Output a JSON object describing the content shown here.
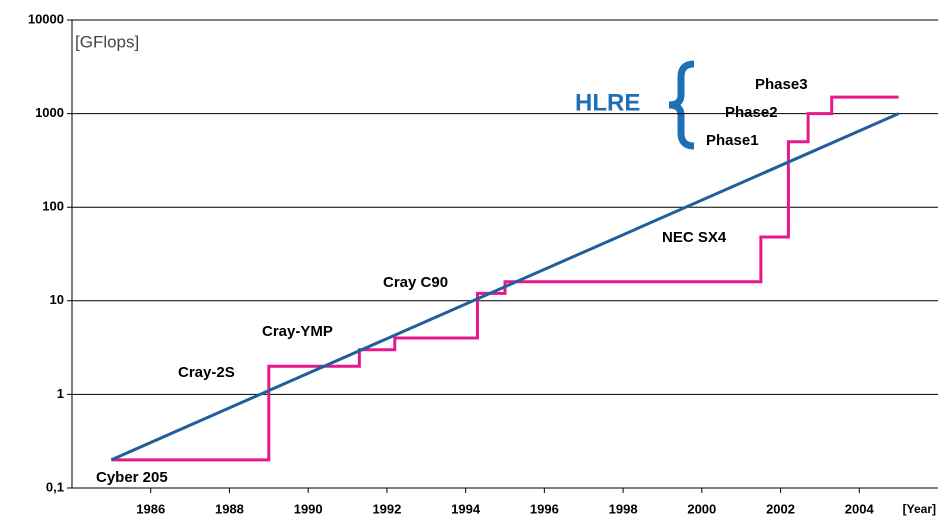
{
  "chart_data": {
    "type": "line",
    "y_label": "[GFlops]",
    "x_label": "[Year]",
    "log_y": true,
    "grid": true,
    "xlim": [
      1984,
      2006
    ],
    "xticks": [
      1986,
      1988,
      1990,
      1992,
      1994,
      1996,
      1998,
      2000,
      2002,
      2004
    ],
    "ylim": [
      0.1,
      10000
    ],
    "yticks": [
      {
        "value": 0.1,
        "label": "0,1"
      },
      1,
      10,
      100,
      1000,
      10000
    ],
    "series": [
      {
        "color": "#e6198c",
        "step": true,
        "x": [
          1985,
          1989,
          1989,
          1991.3,
          1991.3,
          1992.2,
          1992.2,
          1994.3,
          1994.3,
          1995,
          1995,
          2001.5,
          2001.5,
          2002.2,
          2002.2,
          2002.7,
          2002.7,
          2003.3,
          2003.3,
          2005
        ],
        "values": [
          0.2,
          0.2,
          2,
          2,
          3,
          3,
          4,
          4,
          12,
          12,
          16,
          16,
          48,
          48,
          500,
          500,
          1000,
          1000,
          1500,
          1500
        ]
      },
      {
        "color": "#1f5f9a",
        "x": [
          1985,
          2005
        ],
        "values": [
          0.2,
          1000
        ]
      }
    ],
    "annotations": [
      "Cyber 205",
      "Cray-2S",
      "Cray-YMP",
      "Cray C90",
      "NEC SX4",
      "Phase1",
      "Phase2",
      "Phase3",
      "HLRE"
    ]
  }
}
